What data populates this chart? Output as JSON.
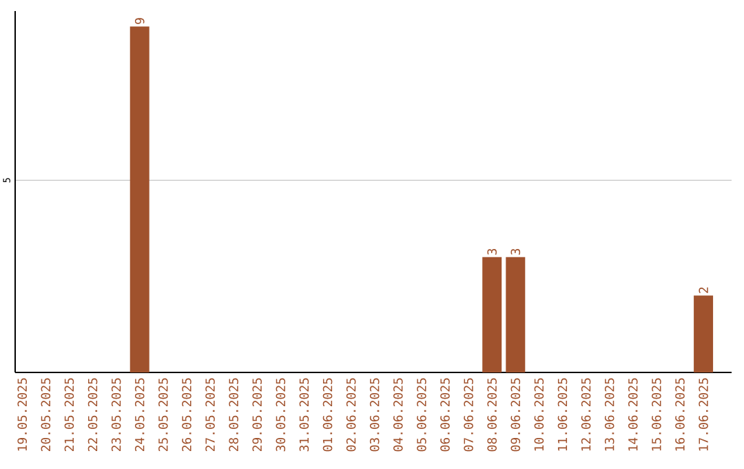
{
  "chart_data": {
    "type": "bar",
    "categories": [
      "19.05.2025",
      "20.05.2025",
      "21.05.2025",
      "22.05.2025",
      "23.05.2025",
      "24.05.2025",
      "25.05.2025",
      "26.05.2025",
      "27.05.2025",
      "28.05.2025",
      "29.05.2025",
      "30.05.2025",
      "31.05.2025",
      "01.06.2025",
      "02.06.2025",
      "03.06.2025",
      "04.06.2025",
      "05.06.2025",
      "06.06.2025",
      "07.06.2025",
      "08.06.2025",
      "09.06.2025",
      "10.06.2025",
      "11.06.2025",
      "12.06.2025",
      "13.06.2025",
      "14.06.2025",
      "15.06.2025",
      "16.06.2025",
      "17.06.2025"
    ],
    "values": [
      0,
      0,
      0,
      0,
      0,
      9,
      0,
      0,
      0,
      0,
      0,
      0,
      0,
      0,
      0,
      0,
      0,
      0,
      0,
      0,
      3,
      3,
      0,
      0,
      0,
      0,
      0,
      0,
      0,
      2
    ],
    "value_labels": [
      null,
      null,
      null,
      null,
      null,
      "9",
      null,
      null,
      null,
      null,
      null,
      null,
      null,
      null,
      null,
      null,
      null,
      null,
      null,
      null,
      "3",
      "3",
      null,
      null,
      null,
      null,
      null,
      null,
      null,
      "2"
    ],
    "color": "#a0522d",
    "ylim": [
      0,
      9.4
    ],
    "yticks": [
      5
    ],
    "grid": "y"
  }
}
